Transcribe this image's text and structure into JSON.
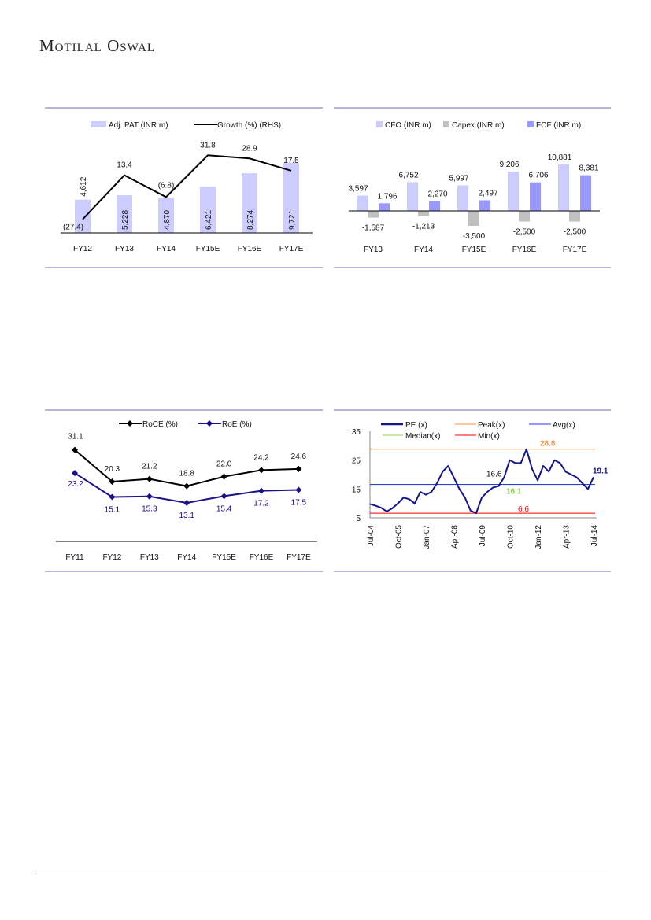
{
  "header": {
    "logo_text": "Motilal Oswal"
  },
  "colors": {
    "frame": "#8a86c0",
    "pat_bar": "#ccccff",
    "cfo_bar": "#ccccff",
    "capex_bar": "#c0c0c0",
    "fcf_bar": "#9999ff",
    "roe": "#1a0f8c",
    "pe": "#14148c",
    "peak": "#f79646",
    "avg": "#3333ff",
    "median": "#92d050",
    "min": "#ff0000"
  },
  "chart_data": [
    {
      "type": "bar",
      "legend": [
        "Adj. PAT (INR m)",
        "Growth (%) (RHS)"
      ],
      "categories": [
        "FY12",
        "FY13",
        "FY14",
        "FY15E",
        "FY16E",
        "FY17E"
      ],
      "series": [
        {
          "name": "Adj. PAT (INR m)",
          "kind": "bar",
          "values": [
            4612,
            5228,
            4870,
            6421,
            8274,
            9721
          ],
          "labels": [
            "4,612",
            "5,228",
            "4,870",
            "6,421",
            "8,274",
            "9,721"
          ]
        },
        {
          "name": "Growth (%) (RHS)",
          "kind": "line",
          "axis": "right",
          "values": [
            -27.4,
            13.4,
            -6.8,
            31.8,
            28.9,
            17.5
          ],
          "labels": [
            "(27.4)",
            "13.4",
            "(6.8)",
            "31.8",
            "28.9",
            "17.5"
          ]
        }
      ],
      "ylim": [
        0,
        12000
      ],
      "ylim_right": [
        -40,
        40
      ],
      "grid": false,
      "legend_position": "top"
    },
    {
      "type": "bar",
      "legend": [
        "CFO (INR m)",
        "Capex (INR m)",
        "FCF (INR m)"
      ],
      "categories": [
        "FY13",
        "FY14",
        "FY15E",
        "FY16E",
        "FY17E"
      ],
      "series": [
        {
          "name": "CFO (INR m)",
          "values": [
            3597,
            6752,
            5997,
            9206,
            10881
          ],
          "labels": [
            "3,597",
            "6,752",
            "5,997",
            "9,206",
            "10,881"
          ]
        },
        {
          "name": "Capex (INR m)",
          "values": [
            -1587,
            -1213,
            -3500,
            -2500,
            -2500
          ],
          "labels": [
            "-1,587",
            "-1,213",
            "-3,500",
            "-2,500",
            "-2,500"
          ]
        },
        {
          "name": "FCF (INR m)",
          "values": [
            1796,
            2270,
            2497,
            6706,
            8381
          ],
          "labels": [
            "1,796",
            "2,270",
            "2,497",
            "6,706",
            "8,381"
          ]
        }
      ],
      "ylim": [
        -4000,
        12000
      ],
      "grid": false,
      "legend_position": "top"
    },
    {
      "type": "line",
      "legend": [
        "RoCE (%)",
        "RoE (%)"
      ],
      "categories": [
        "FY11",
        "FY12",
        "FY13",
        "FY14",
        "FY15E",
        "FY16E",
        "FY17E"
      ],
      "series": [
        {
          "name": "RoCE (%)",
          "values": [
            31.1,
            20.3,
            21.2,
            18.8,
            22.0,
            24.2,
            24.6
          ],
          "labels": [
            "31.1",
            "20.3",
            "21.2",
            "18.8",
            "22.0",
            "24.2",
            "24.6"
          ]
        },
        {
          "name": "RoE (%)",
          "values": [
            23.2,
            15.1,
            15.3,
            13.1,
            15.4,
            17.2,
            17.5
          ],
          "labels": [
            "23.2",
            "15.1",
            "15.3",
            "13.1",
            "15.4",
            "17.2",
            "17.5"
          ]
        }
      ],
      "ylim": [
        0,
        35
      ],
      "grid": false,
      "legend_position": "top"
    },
    {
      "type": "line",
      "legend": [
        "PE (x)",
        "Peak(x)",
        "Avg(x)",
        "Median(x)",
        "Min(x)"
      ],
      "x_tick_labels": [
        "Jul-04",
        "Oct-05",
        "Jan-07",
        "Apr-08",
        "Jul-09",
        "Oct-10",
        "Jan-12",
        "Apr-13",
        "Jul-14"
      ],
      "y_tick_labels": [
        "35",
        "25",
        "15",
        "5"
      ],
      "y_ticks": [
        35,
        25,
        15,
        5
      ],
      "ylim": [
        5,
        35
      ],
      "x_unit": "quarters from Jul-04",
      "pe_series": [
        9.8,
        9.2,
        8.5,
        7.2,
        8.3,
        10,
        12,
        11.5,
        10,
        14,
        13,
        14,
        17,
        21,
        23,
        19,
        15,
        12,
        7.5,
        6.6,
        12,
        14,
        15.5,
        16,
        19,
        25,
        24,
        24,
        28.8,
        22,
        18,
        23,
        21,
        25,
        24,
        21,
        20,
        19,
        17,
        15,
        19.1
      ],
      "reference_lines": {
        "peak": 28.8,
        "avg": 16.6,
        "median": 16.1,
        "min": 6.6
      },
      "annotations": {
        "peak": "28.8",
        "avg": "16.6",
        "median": "16.1",
        "min": "6.6",
        "last": "19.1"
      },
      "grid": false,
      "legend_position": "top"
    }
  ]
}
